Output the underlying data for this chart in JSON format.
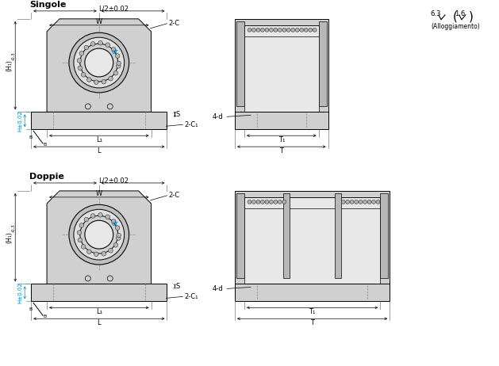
{
  "bg_color": "#ffffff",
  "line_color": "#000000",
  "cyan_color": "#0088cc",
  "gray_fill": "#d0d0d0",
  "gray_light": "#e8e8e8",
  "gray_dark": "#999999",
  "title_singole": "Singole",
  "title_doppie": "Doppie",
  "surface_text": "(Alloggiamento)",
  "label_dr": "dr",
  "label_2C": "2-C",
  "label_2C1": "2-C₁",
  "label_4d": "4-d",
  "label_L2": "L/2±0.02",
  "label_W": "W",
  "label_L1": "L₁",
  "label_L": "L",
  "label_T1": "T₁",
  "label_T": "T",
  "label_H": "H±0.02",
  "label_H1": "(H₁)",
  "label_S": "S",
  "rough_63": "6.3",
  "rough_16": "1.6"
}
